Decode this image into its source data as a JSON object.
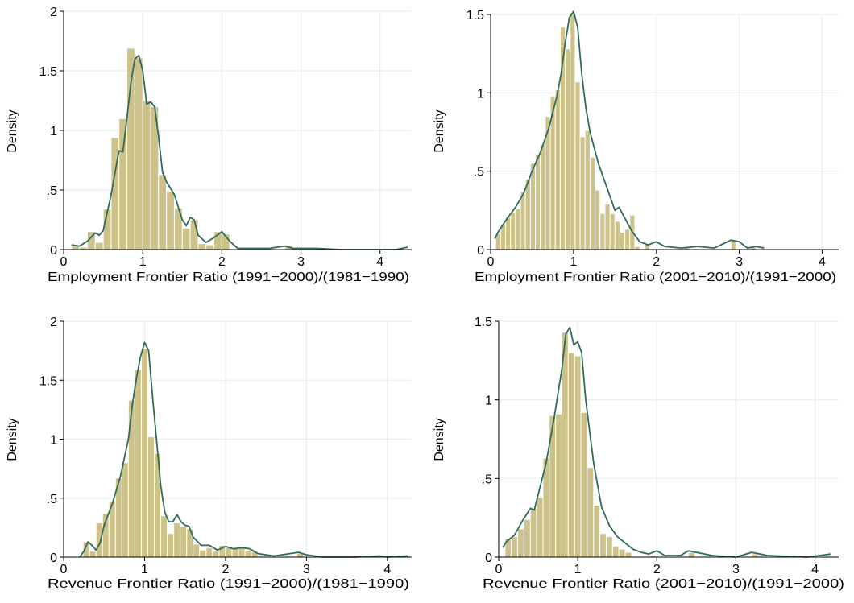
{
  "chart_data": [
    {
      "id": "emp-9100",
      "type": "bar",
      "subtype": "histogram-with-kde",
      "xlabel": "Employment Frontier Ratio (1991−2000)/(1981−1990)",
      "ylabel": "Density",
      "xlim": [
        0,
        4.4
      ],
      "ylim": [
        0,
        2
      ],
      "xticks": [
        0,
        1,
        2,
        3,
        4
      ],
      "xtick_labels": [
        "0",
        "1",
        "2",
        "3",
        "4"
      ],
      "yticks": [
        0,
        0.5,
        1,
        1.5,
        2
      ],
      "ytick_labels": [
        "0",
        ".5",
        "1",
        "1.5",
        "2"
      ],
      "grid": true,
      "bin_width": 0.1,
      "bins": [
        [
          0.15,
          0.03
        ],
        [
          0.25,
          0.02
        ],
        [
          0.35,
          0.15
        ],
        [
          0.45,
          0.06
        ],
        [
          0.55,
          0.34
        ],
        [
          0.65,
          0.94
        ],
        [
          0.75,
          1.1
        ],
        [
          0.85,
          1.69
        ],
        [
          0.95,
          1.61
        ],
        [
          1.05,
          1.25
        ],
        [
          1.15,
          1.2
        ],
        [
          1.25,
          0.63
        ],
        [
          1.35,
          0.49
        ],
        [
          1.45,
          0.35
        ],
        [
          1.55,
          0.18
        ],
        [
          1.65,
          0.25
        ],
        [
          1.75,
          0.05
        ],
        [
          1.85,
          0.04
        ],
        [
          1.95,
          0.15
        ],
        [
          2.05,
          0.13
        ],
        [
          2.85,
          0.03
        ],
        [
          3.35,
          0.01
        ]
      ],
      "kde": [
        [
          0.1,
          0.04
        ],
        [
          0.2,
          0.03
        ],
        [
          0.3,
          0.07
        ],
        [
          0.4,
          0.14
        ],
        [
          0.45,
          0.12
        ],
        [
          0.5,
          0.16
        ],
        [
          0.6,
          0.46
        ],
        [
          0.7,
          0.83
        ],
        [
          0.75,
          0.82
        ],
        [
          0.8,
          1.1
        ],
        [
          0.85,
          1.4
        ],
        [
          0.9,
          1.6
        ],
        [
          0.95,
          1.63
        ],
        [
          1.0,
          1.5
        ],
        [
          1.05,
          1.22
        ],
        [
          1.1,
          1.24
        ],
        [
          1.15,
          1.2
        ],
        [
          1.2,
          0.95
        ],
        [
          1.25,
          0.65
        ],
        [
          1.3,
          0.57
        ],
        [
          1.4,
          0.46
        ],
        [
          1.5,
          0.25
        ],
        [
          1.55,
          0.2
        ],
        [
          1.6,
          0.27
        ],
        [
          1.65,
          0.25
        ],
        [
          1.7,
          0.12
        ],
        [
          1.8,
          0.06
        ],
        [
          1.9,
          0.1
        ],
        [
          2.0,
          0.15
        ],
        [
          2.1,
          0.07
        ],
        [
          2.2,
          0.01
        ],
        [
          2.4,
          0.01
        ],
        [
          2.6,
          0.01
        ],
        [
          2.8,
          0.03
        ],
        [
          2.9,
          0.01
        ],
        [
          3.2,
          0.01
        ],
        [
          3.5,
          0.0
        ],
        [
          3.9,
          0.0
        ],
        [
          4.2,
          0.0
        ],
        [
          4.35,
          0.02
        ]
      ]
    },
    {
      "id": "emp-0100",
      "type": "bar",
      "subtype": "histogram-with-kde",
      "xlabel": "Employment Frontier Ratio (2001−2010)/(1991−2000)",
      "ylabel": "Density",
      "xlim": [
        0,
        4.2
      ],
      "ylim": [
        0,
        1.5
      ],
      "xticks": [
        0,
        1,
        2,
        3,
        4
      ],
      "xtick_labels": [
        "0",
        "1",
        "2",
        "3",
        "4"
      ],
      "yticks": [
        0,
        0.5,
        1,
        1.5
      ],
      "ytick_labels": [
        "0",
        ".5",
        "1",
        "1.5"
      ],
      "grid": true,
      "bin_width": 0.06,
      "bins": [
        [
          0.09,
          0.1
        ],
        [
          0.15,
          0.16
        ],
        [
          0.21,
          0.21
        ],
        [
          0.27,
          0.24
        ],
        [
          0.33,
          0.26
        ],
        [
          0.39,
          0.37
        ],
        [
          0.45,
          0.45
        ],
        [
          0.51,
          0.55
        ],
        [
          0.57,
          0.61
        ],
        [
          0.63,
          0.67
        ],
        [
          0.69,
          0.85
        ],
        [
          0.75,
          0.98
        ],
        [
          0.81,
          1.02
        ],
        [
          0.87,
          1.42
        ],
        [
          0.93,
          1.28
        ],
        [
          0.99,
          1.51
        ],
        [
          1.05,
          1.07
        ],
        [
          1.11,
          0.72
        ],
        [
          1.17,
          0.76
        ],
        [
          1.23,
          0.59
        ],
        [
          1.29,
          0.38
        ],
        [
          1.35,
          0.23
        ],
        [
          1.41,
          0.29
        ],
        [
          1.47,
          0.23
        ],
        [
          1.53,
          0.18
        ],
        [
          1.59,
          0.11
        ],
        [
          1.65,
          0.13
        ],
        [
          1.71,
          0.22
        ],
        [
          1.77,
          0.02
        ],
        [
          1.89,
          0.04
        ],
        [
          2.37,
          0.01
        ],
        [
          2.93,
          0.06
        ],
        [
          3.17,
          0.02
        ]
      ],
      "kde": [
        [
          0.05,
          0.07
        ],
        [
          0.1,
          0.12
        ],
        [
          0.2,
          0.2
        ],
        [
          0.3,
          0.27
        ],
        [
          0.4,
          0.36
        ],
        [
          0.5,
          0.5
        ],
        [
          0.6,
          0.62
        ],
        [
          0.7,
          0.77
        ],
        [
          0.8,
          0.98
        ],
        [
          0.85,
          1.12
        ],
        [
          0.9,
          1.32
        ],
        [
          0.95,
          1.48
        ],
        [
          1.0,
          1.52
        ],
        [
          1.05,
          1.42
        ],
        [
          1.1,
          1.12
        ],
        [
          1.15,
          0.9
        ],
        [
          1.2,
          0.75
        ],
        [
          1.3,
          0.55
        ],
        [
          1.4,
          0.4
        ],
        [
          1.5,
          0.25
        ],
        [
          1.55,
          0.27
        ],
        [
          1.6,
          0.22
        ],
        [
          1.7,
          0.12
        ],
        [
          1.8,
          0.05
        ],
        [
          1.9,
          0.03
        ],
        [
          2.0,
          0.05
        ],
        [
          2.1,
          0.02
        ],
        [
          2.3,
          0.01
        ],
        [
          2.5,
          0.02
        ],
        [
          2.7,
          0.01
        ],
        [
          2.9,
          0.06
        ],
        [
          3.0,
          0.05
        ],
        [
          3.1,
          0.01
        ],
        [
          3.2,
          0.02
        ],
        [
          3.3,
          0.01
        ]
      ]
    },
    {
      "id": "rev-9100",
      "type": "bar",
      "subtype": "histogram-with-kde",
      "xlabel": "Revenue Frontier Ratio (1991−2000)/(1981−1990)",
      "ylabel": "Density",
      "xlim": [
        0,
        4.3
      ],
      "ylim": [
        0,
        2
      ],
      "xticks": [
        0,
        1,
        2,
        3,
        4
      ],
      "xtick_labels": [
        "0",
        "1",
        "2",
        "3",
        "4"
      ],
      "yticks": [
        0,
        0.5,
        1,
        1.5,
        2
      ],
      "ytick_labels": [
        "0",
        ".5",
        "1",
        "1.5",
        "2"
      ],
      "grid": true,
      "bin_width": 0.08,
      "bins": [
        [
          0.28,
          0.13
        ],
        [
          0.36,
          0.05
        ],
        [
          0.44,
          0.29
        ],
        [
          0.52,
          0.37
        ],
        [
          0.6,
          0.47
        ],
        [
          0.68,
          0.67
        ],
        [
          0.76,
          0.8
        ],
        [
          0.84,
          1.33
        ],
        [
          0.92,
          1.59
        ],
        [
          1.0,
          1.77
        ],
        [
          1.08,
          1.02
        ],
        [
          1.16,
          0.88
        ],
        [
          1.24,
          0.35
        ],
        [
          1.32,
          0.2
        ],
        [
          1.4,
          0.29
        ],
        [
          1.48,
          0.26
        ],
        [
          1.56,
          0.24
        ],
        [
          1.64,
          0.11
        ],
        [
          1.72,
          0.06
        ],
        [
          1.8,
          0.08
        ],
        [
          1.88,
          0.05
        ],
        [
          1.96,
          0.1
        ],
        [
          2.04,
          0.08
        ],
        [
          2.12,
          0.08
        ],
        [
          2.2,
          0.08
        ],
        [
          2.28,
          0.06
        ],
        [
          2.36,
          0.05
        ],
        [
          2.92,
          0.03
        ]
      ],
      "kde": [
        [
          0.2,
          0.0
        ],
        [
          0.25,
          0.05
        ],
        [
          0.3,
          0.13
        ],
        [
          0.35,
          0.1
        ],
        [
          0.4,
          0.06
        ],
        [
          0.45,
          0.12
        ],
        [
          0.5,
          0.27
        ],
        [
          0.6,
          0.45
        ],
        [
          0.7,
          0.68
        ],
        [
          0.8,
          1.0
        ],
        [
          0.85,
          1.3
        ],
        [
          0.9,
          1.52
        ],
        [
          0.95,
          1.7
        ],
        [
          1.0,
          1.82
        ],
        [
          1.05,
          1.75
        ],
        [
          1.1,
          1.35
        ],
        [
          1.15,
          0.98
        ],
        [
          1.2,
          0.6
        ],
        [
          1.25,
          0.38
        ],
        [
          1.3,
          0.3
        ],
        [
          1.35,
          0.3
        ],
        [
          1.4,
          0.36
        ],
        [
          1.45,
          0.3
        ],
        [
          1.5,
          0.27
        ],
        [
          1.55,
          0.26
        ],
        [
          1.6,
          0.17
        ],
        [
          1.7,
          0.1
        ],
        [
          1.8,
          0.1
        ],
        [
          1.9,
          0.06
        ],
        [
          2.0,
          0.09
        ],
        [
          2.1,
          0.07
        ],
        [
          2.2,
          0.08
        ],
        [
          2.3,
          0.07
        ],
        [
          2.4,
          0.03
        ],
        [
          2.6,
          0.01
        ],
        [
          2.9,
          0.04
        ],
        [
          3.0,
          0.02
        ],
        [
          3.2,
          0.0
        ],
        [
          3.6,
          0.0
        ],
        [
          3.9,
          0.01
        ],
        [
          4.0,
          0.0
        ],
        [
          4.25,
          0.01
        ]
      ]
    },
    {
      "id": "rev-0100",
      "type": "bar",
      "subtype": "histogram-with-kde",
      "xlabel": "Revenue Frontier Ratio (2001−2010)/(1991−2000)",
      "ylabel": "Density",
      "xlim": [
        0,
        4.3
      ],
      "ylim": [
        0,
        1.5
      ],
      "xticks": [
        0,
        1,
        2,
        3,
        4
      ],
      "xtick_labels": [
        "0",
        "1",
        "2",
        "3",
        "4"
      ],
      "yticks": [
        0,
        0.5,
        1,
        1.5
      ],
      "ytick_labels": [
        "0",
        ".5",
        "1",
        "1.5"
      ],
      "grid": true,
      "bin_width": 0.08,
      "bins": [
        [
          0.12,
          0.12
        ],
        [
          0.2,
          0.13
        ],
        [
          0.28,
          0.18
        ],
        [
          0.36,
          0.24
        ],
        [
          0.44,
          0.31
        ],
        [
          0.52,
          0.38
        ],
        [
          0.6,
          0.63
        ],
        [
          0.68,
          0.9
        ],
        [
          0.76,
          0.91
        ],
        [
          0.84,
          1.43
        ],
        [
          0.92,
          1.3
        ],
        [
          1.0,
          1.28
        ],
        [
          1.08,
          0.92
        ],
        [
          1.16,
          0.57
        ],
        [
          1.24,
          0.33
        ],
        [
          1.32,
          0.15
        ],
        [
          1.4,
          0.13
        ],
        [
          1.48,
          0.07
        ],
        [
          1.56,
          0.05
        ],
        [
          1.64,
          0.03
        ],
        [
          1.96,
          0.01
        ],
        [
          2.44,
          0.03
        ],
        [
          3.24,
          0.02
        ]
      ],
      "kde": [
        [
          0.05,
          0.06
        ],
        [
          0.1,
          0.1
        ],
        [
          0.2,
          0.14
        ],
        [
          0.3,
          0.23
        ],
        [
          0.4,
          0.31
        ],
        [
          0.45,
          0.3
        ],
        [
          0.5,
          0.4
        ],
        [
          0.6,
          0.6
        ],
        [
          0.7,
          0.88
        ],
        [
          0.8,
          1.2
        ],
        [
          0.85,
          1.42
        ],
        [
          0.9,
          1.46
        ],
        [
          0.95,
          1.35
        ],
        [
          1.0,
          1.37
        ],
        [
          1.05,
          1.3
        ],
        [
          1.1,
          1.0
        ],
        [
          1.2,
          0.6
        ],
        [
          1.3,
          0.32
        ],
        [
          1.4,
          0.2
        ],
        [
          1.5,
          0.13
        ],
        [
          1.6,
          0.09
        ],
        [
          1.7,
          0.05
        ],
        [
          1.8,
          0.03
        ],
        [
          1.9,
          0.02
        ],
        [
          2.0,
          0.04
        ],
        [
          2.1,
          0.01
        ],
        [
          2.3,
          0.01
        ],
        [
          2.4,
          0.04
        ],
        [
          2.5,
          0.03
        ],
        [
          2.7,
          0.01
        ],
        [
          3.0,
          0.0
        ],
        [
          3.2,
          0.03
        ],
        [
          3.4,
          0.01
        ],
        [
          3.9,
          0.0
        ],
        [
          4.2,
          0.02
        ]
      ]
    }
  ],
  "style": {
    "bar_fill": "#cdc38a",
    "bar_stroke": "#ffffff",
    "kde_color": "#2f6a5c",
    "grid_color": "#e6eef2",
    "axis_color": "#000000",
    "background": "#ffffff"
  }
}
